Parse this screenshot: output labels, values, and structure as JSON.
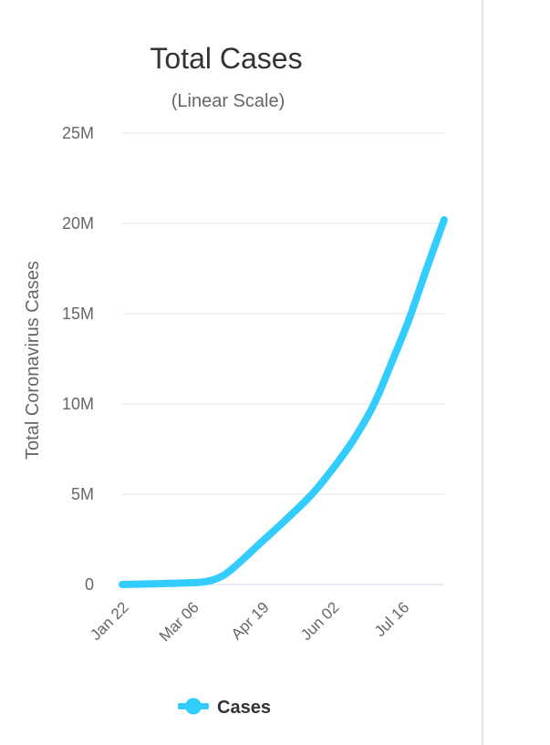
{
  "chart_data": {
    "type": "line",
    "title": "Total Cases",
    "subtitle": "(Linear Scale)",
    "ylabel": "Total Coronavirus Cases",
    "xlabel": "",
    "ylim": [
      0,
      25000000
    ],
    "yticks": [
      {
        "value": 0,
        "label": "0"
      },
      {
        "value": 5000000,
        "label": "5M"
      },
      {
        "value": 10000000,
        "label": "10M"
      },
      {
        "value": 15000000,
        "label": "15M"
      },
      {
        "value": 20000000,
        "label": "20M"
      },
      {
        "value": 25000000,
        "label": "25M"
      }
    ],
    "xlim": [
      "2020-01-22",
      "2020-08-11"
    ],
    "xticks": [
      {
        "value": "2020-01-22",
        "label": "Jan 22"
      },
      {
        "value": "2020-03-06",
        "label": "Mar 06"
      },
      {
        "value": "2020-04-19",
        "label": "Apr 19"
      },
      {
        "value": "2020-06-02",
        "label": "Jun 02"
      },
      {
        "value": "2020-07-16",
        "label": "Jul 16"
      }
    ],
    "grid": true,
    "legend": "bottom-center",
    "series": [
      {
        "name": "Cases",
        "color": "#33ccff",
        "points": [
          {
            "x": "2020-01-22",
            "y": 0
          },
          {
            "x": "2020-02-10",
            "y": 40000
          },
          {
            "x": "2020-03-01",
            "y": 88000
          },
          {
            "x": "2020-03-15",
            "y": 170000
          },
          {
            "x": "2020-03-25",
            "y": 480000
          },
          {
            "x": "2020-04-03",
            "y": 1100000
          },
          {
            "x": "2020-04-19",
            "y": 2400000
          },
          {
            "x": "2020-05-05",
            "y": 3700000
          },
          {
            "x": "2020-05-20",
            "y": 5000000
          },
          {
            "x": "2020-06-02",
            "y": 6400000
          },
          {
            "x": "2020-06-15",
            "y": 8000000
          },
          {
            "x": "2020-06-28",
            "y": 10000000
          },
          {
            "x": "2020-07-10",
            "y": 12500000
          },
          {
            "x": "2020-07-20",
            "y": 14700000
          },
          {
            "x": "2020-07-31",
            "y": 17500000
          },
          {
            "x": "2020-08-11",
            "y": 20200000
          }
        ]
      }
    ]
  }
}
